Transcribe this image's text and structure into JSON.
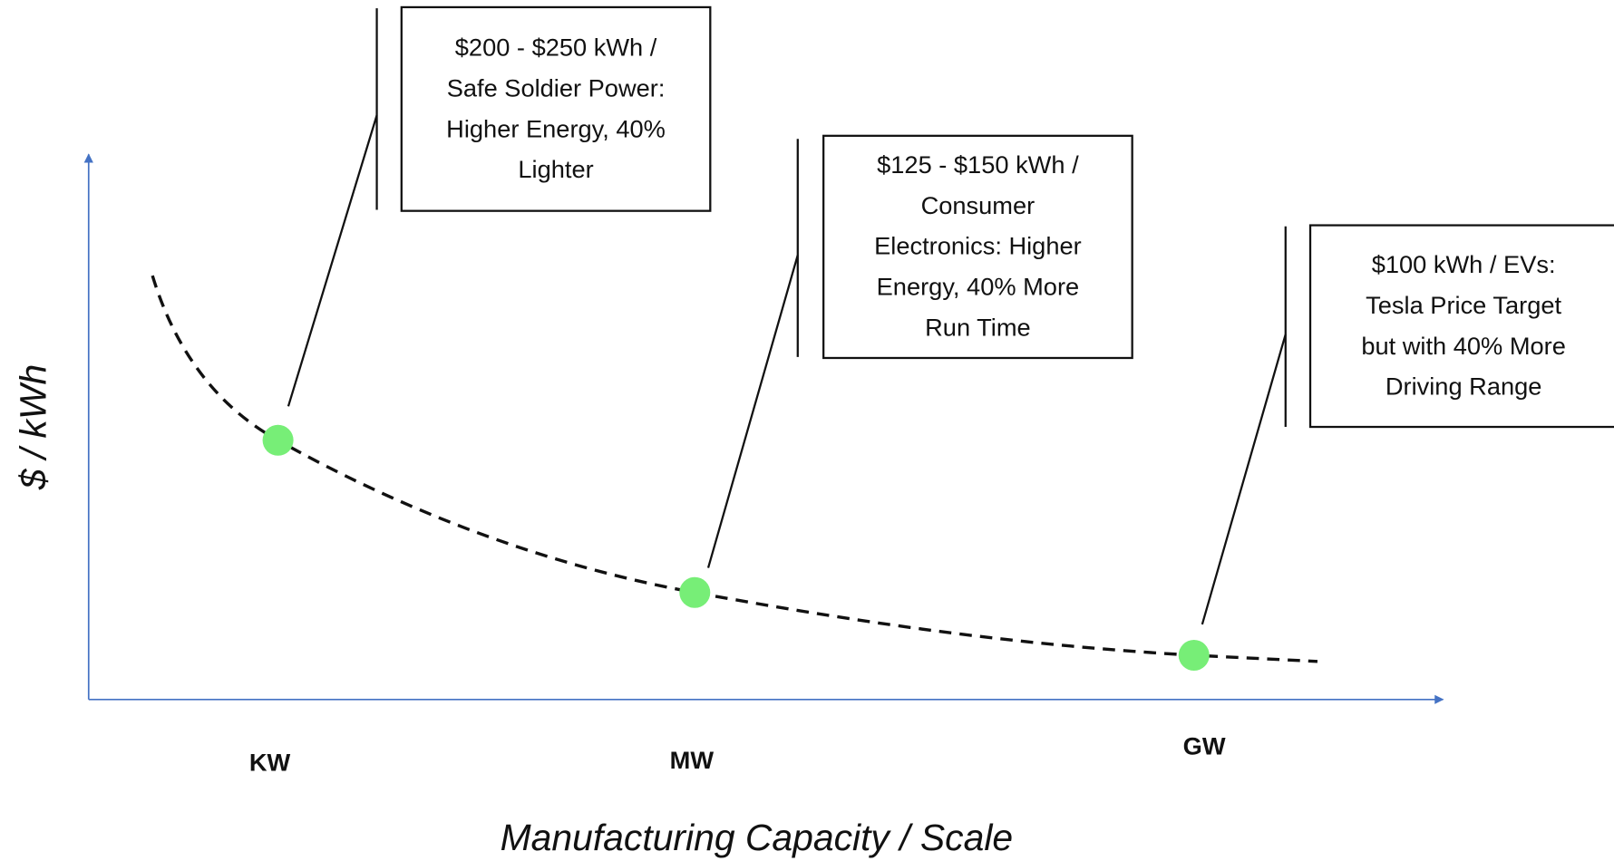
{
  "y_axis_label": "$ / kWh",
  "x_axis_label": "Manufacturing Capacity / Scale",
  "points": [
    {
      "category": "KW",
      "callout": [
        "$200 - $250 kWh /",
        "Safe Soldier Power:",
        "Higher Energy, 40%",
        "Lighter"
      ]
    },
    {
      "category": "MW",
      "callout": [
        "$125 - $150 kWh /",
        "Consumer",
        "Electronics: Higher",
        "Energy, 40% More",
        "Run Time"
      ]
    },
    {
      "category": "GW",
      "callout": [
        "$100 kWh / EVs:",
        "Tesla Price Target",
        "but with 40% More",
        "Driving Range"
      ]
    }
  ]
}
